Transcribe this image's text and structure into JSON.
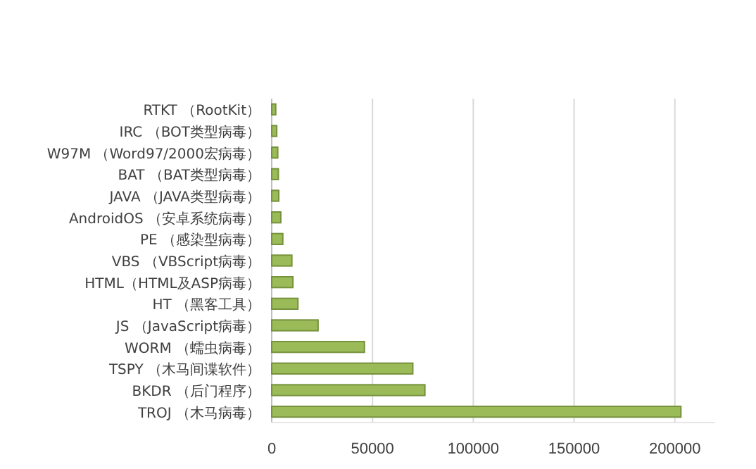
{
  "chart_data": {
    "type": "bar",
    "orientation": "horizontal",
    "categories": [
      "RTKT （RootKit）",
      "IRC （BOT类型病毒）",
      "W97M （Word97/2000宏病毒）",
      "BAT （BAT类型病毒）",
      "JAVA （JAVA类型病毒）",
      "AndroidOS （安卓系统病毒）",
      "PE （感染型病毒）",
      "VBS （VBScript病毒）",
      "HTML（HTML及ASP病毒）",
      "HT （黑客工具）",
      "JS （JavaScript病毒）",
      "WORM （蠕虫病毒）",
      "TSPY （木马间谍软件）",
      "BKDR （后门程序）",
      "TROJ （木马病毒）"
    ],
    "values": [
      2000,
      2500,
      3000,
      3300,
      3500,
      4500,
      5500,
      10000,
      10500,
      13000,
      23000,
      46000,
      70000,
      76000,
      203000
    ],
    "color": "#9bbb59",
    "xlim": [
      0,
      220000
    ],
    "xticks": [
      0,
      50000,
      100000,
      150000,
      200000
    ],
    "grid": "x"
  }
}
